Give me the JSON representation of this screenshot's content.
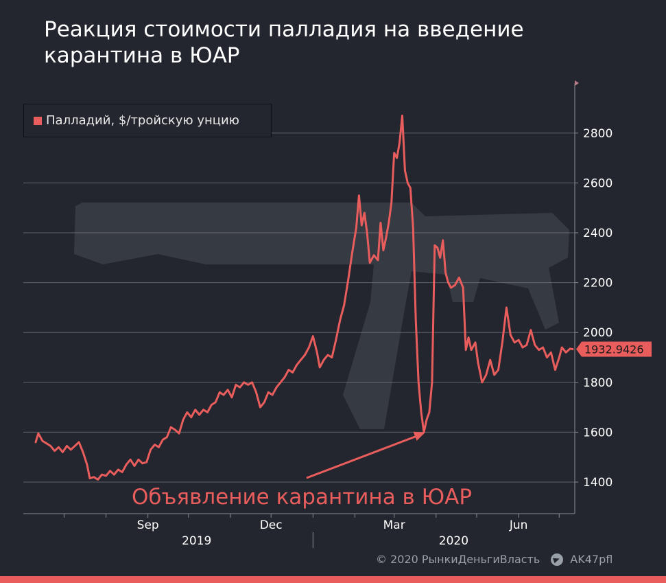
{
  "colors": {
    "background": "#23262e",
    "series": "#e95d5d",
    "grid": "#8a8d93",
    "axis_text": "#ffffff",
    "accent_bar": "#e95d5d",
    "watermark": "#363a42"
  },
  "title_lines": [
    "Реакция стоимости палладия на введение",
    "карантина в ЮАР"
  ],
  "footer": {
    "copyright": "© 2020  РынкиДеньгиВласть",
    "telegram": "AK47pfl",
    "telegram_icon": "telegram-icon"
  },
  "chart_data": {
    "type": "line",
    "title": "Реакция стоимости палладия на введение карантина в ЮАР",
    "ylim": [
      1300,
      2950
    ],
    "yticks": [
      1400,
      1600,
      1800,
      2000,
      2200,
      2400,
      2600,
      2800
    ],
    "grid": true,
    "legend_position": "top-left",
    "x_month_ticks": [
      "2019-07",
      "2019-08",
      "2019-09",
      "2019-10",
      "2019-11",
      "2019-12",
      "2020-01",
      "2020-02",
      "2020-03",
      "2020-04",
      "2020-05",
      "2020-06",
      "2020-07"
    ],
    "x_labels": [
      {
        "date": "2019-09-01",
        "text": "Sep"
      },
      {
        "date": "2019-12-01",
        "text": "Dec"
      },
      {
        "date": "2020-03-01",
        "text": "Mar"
      },
      {
        "date": "2020-06-01",
        "text": "Jun"
      }
    ],
    "year_labels": [
      {
        "date": "2019-10-07",
        "text": "2019"
      },
      {
        "date": "2020-04-14",
        "text": "2020"
      }
    ],
    "year_divider": "2020-01-01",
    "last_value_label": "1932.9426",
    "annotation": {
      "text": "Объявление карантина в ЮАР",
      "points_to": {
        "date": "2020-03-24",
        "value": 1605
      }
    },
    "series": [
      {
        "name": "Палладий, $/тройскую унцию",
        "points": [
          [
            "2019-06-10",
            1560
          ],
          [
            "2019-06-12",
            1595
          ],
          [
            "2019-06-15",
            1565
          ],
          [
            "2019-06-18",
            1555
          ],
          [
            "2019-06-21",
            1545
          ],
          [
            "2019-06-24",
            1525
          ],
          [
            "2019-06-27",
            1540
          ],
          [
            "2019-06-30",
            1520
          ],
          [
            "2019-07-03",
            1545
          ],
          [
            "2019-07-06",
            1530
          ],
          [
            "2019-07-09",
            1545
          ],
          [
            "2019-07-12",
            1560
          ],
          [
            "2019-07-15",
            1520
          ],
          [
            "2019-07-18",
            1470
          ],
          [
            "2019-07-20",
            1415
          ],
          [
            "2019-07-23",
            1420
          ],
          [
            "2019-07-26",
            1410
          ],
          [
            "2019-07-29",
            1430
          ],
          [
            "2019-08-01",
            1425
          ],
          [
            "2019-08-04",
            1445
          ],
          [
            "2019-08-07",
            1430
          ],
          [
            "2019-08-10",
            1450
          ],
          [
            "2019-08-13",
            1440
          ],
          [
            "2019-08-16",
            1470
          ],
          [
            "2019-08-19",
            1490
          ],
          [
            "2019-08-22",
            1465
          ],
          [
            "2019-08-25",
            1490
          ],
          [
            "2019-08-28",
            1475
          ],
          [
            "2019-08-31",
            1480
          ],
          [
            "2019-09-03",
            1530
          ],
          [
            "2019-09-06",
            1550
          ],
          [
            "2019-09-09",
            1540
          ],
          [
            "2019-09-12",
            1570
          ],
          [
            "2019-09-15",
            1580
          ],
          [
            "2019-09-18",
            1620
          ],
          [
            "2019-09-21",
            1610
          ],
          [
            "2019-09-24",
            1595
          ],
          [
            "2019-09-27",
            1650
          ],
          [
            "2019-09-30",
            1680
          ],
          [
            "2019-10-03",
            1660
          ],
          [
            "2019-10-06",
            1690
          ],
          [
            "2019-10-09",
            1670
          ],
          [
            "2019-10-12",
            1690
          ],
          [
            "2019-10-15",
            1680
          ],
          [
            "2019-10-18",
            1710
          ],
          [
            "2019-10-21",
            1720
          ],
          [
            "2019-10-24",
            1760
          ],
          [
            "2019-10-27",
            1750
          ],
          [
            "2019-10-30",
            1770
          ],
          [
            "2019-11-02",
            1740
          ],
          [
            "2019-11-05",
            1790
          ],
          [
            "2019-11-08",
            1780
          ],
          [
            "2019-11-11",
            1800
          ],
          [
            "2019-11-14",
            1790
          ],
          [
            "2019-11-17",
            1800
          ],
          [
            "2019-11-20",
            1760
          ],
          [
            "2019-11-23",
            1700
          ],
          [
            "2019-11-26",
            1720
          ],
          [
            "2019-11-29",
            1760
          ],
          [
            "2019-12-02",
            1750
          ],
          [
            "2019-12-05",
            1780
          ],
          [
            "2019-12-08",
            1800
          ],
          [
            "2019-12-11",
            1820
          ],
          [
            "2019-12-14",
            1850
          ],
          [
            "2019-12-17",
            1840
          ],
          [
            "2019-12-20",
            1870
          ],
          [
            "2019-12-23",
            1890
          ],
          [
            "2019-12-26",
            1910
          ],
          [
            "2019-12-29",
            1940
          ],
          [
            "2020-01-01",
            1985
          ],
          [
            "2020-01-04",
            1920
          ],
          [
            "2020-01-06",
            1860
          ],
          [
            "2020-01-09",
            1890
          ],
          [
            "2020-01-12",
            1910
          ],
          [
            "2020-01-15",
            1900
          ],
          [
            "2020-01-18",
            1970
          ],
          [
            "2020-01-21",
            2050
          ],
          [
            "2020-01-24",
            2110
          ],
          [
            "2020-01-27",
            2210
          ],
          [
            "2020-01-30",
            2320
          ],
          [
            "2020-02-02",
            2420
          ],
          [
            "2020-02-04",
            2550
          ],
          [
            "2020-02-06",
            2430
          ],
          [
            "2020-02-08",
            2480
          ],
          [
            "2020-02-10",
            2400
          ],
          [
            "2020-02-12",
            2280
          ],
          [
            "2020-02-15",
            2310
          ],
          [
            "2020-02-18",
            2290
          ],
          [
            "2020-02-20",
            2440
          ],
          [
            "2020-02-22",
            2330
          ],
          [
            "2020-02-24",
            2380
          ],
          [
            "2020-02-26",
            2440
          ],
          [
            "2020-02-28",
            2520
          ],
          [
            "2020-03-01",
            2720
          ],
          [
            "2020-03-03",
            2700
          ],
          [
            "2020-03-05",
            2760
          ],
          [
            "2020-03-07",
            2870
          ],
          [
            "2020-03-09",
            2650
          ],
          [
            "2020-03-11",
            2600
          ],
          [
            "2020-03-13",
            2580
          ],
          [
            "2020-03-15",
            2420
          ],
          [
            "2020-03-17",
            2050
          ],
          [
            "2020-03-19",
            1800
          ],
          [
            "2020-03-21",
            1680
          ],
          [
            "2020-03-23",
            1600
          ],
          [
            "2020-03-25",
            1650
          ],
          [
            "2020-03-27",
            1680
          ],
          [
            "2020-03-29",
            1800
          ],
          [
            "2020-03-31",
            2350
          ],
          [
            "2020-04-02",
            2340
          ],
          [
            "2020-04-04",
            2300
          ],
          [
            "2020-04-06",
            2370
          ],
          [
            "2020-04-08",
            2240
          ],
          [
            "2020-04-10",
            2200
          ],
          [
            "2020-04-12",
            2180
          ],
          [
            "2020-04-15",
            2190
          ],
          [
            "2020-04-18",
            2220
          ],
          [
            "2020-04-21",
            2180
          ],
          [
            "2020-04-23",
            1930
          ],
          [
            "2020-04-25",
            1980
          ],
          [
            "2020-04-27",
            1930
          ],
          [
            "2020-04-30",
            1960
          ],
          [
            "2020-05-02",
            1880
          ],
          [
            "2020-05-05",
            1800
          ],
          [
            "2020-05-08",
            1830
          ],
          [
            "2020-05-11",
            1890
          ],
          [
            "2020-05-14",
            1830
          ],
          [
            "2020-05-17",
            1850
          ],
          [
            "2020-05-20",
            1960
          ],
          [
            "2020-05-23",
            2100
          ],
          [
            "2020-05-26",
            1990
          ],
          [
            "2020-05-29",
            1960
          ],
          [
            "2020-06-01",
            1970
          ],
          [
            "2020-06-04",
            1940
          ],
          [
            "2020-06-07",
            1950
          ],
          [
            "2020-06-10",
            2010
          ],
          [
            "2020-06-13",
            1950
          ],
          [
            "2020-06-16",
            1930
          ],
          [
            "2020-06-19",
            1940
          ],
          [
            "2020-06-22",
            1900
          ],
          [
            "2020-06-25",
            1920
          ],
          [
            "2020-06-28",
            1850
          ],
          [
            "2020-07-01",
            1900
          ],
          [
            "2020-07-03",
            1940
          ],
          [
            "2020-07-06",
            1920
          ],
          [
            "2020-07-09",
            1935
          ],
          [
            "2020-07-11",
            1933
          ]
        ]
      }
    ]
  }
}
